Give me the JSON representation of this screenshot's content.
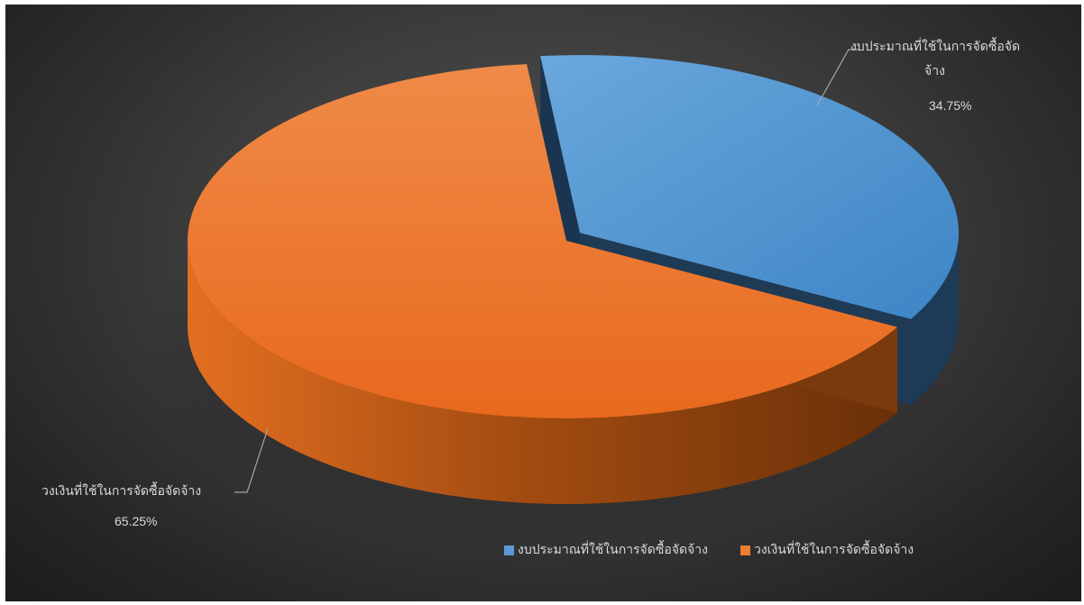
{
  "chart_data": {
    "type": "pie",
    "title": "",
    "slices": [
      {
        "label": "งบประมาณที่ใช้ในการจัดซื้อจัดจ้าง",
        "value": 34.75,
        "display": "34.75%",
        "color": "#5b9bd5"
      },
      {
        "label": "วงเงินที่ใช้ในการจัดซื้อจัดจ้าง",
        "value": 65.25,
        "display": "65.25%",
        "color": "#ed7d31"
      }
    ],
    "legend_position": "bottom-right",
    "style": "3d-exploded"
  },
  "labels": {
    "blue_line1": "งบประมาณที่ใช้ในการจัดซื้อจัด",
    "blue_line2": "จ้าง",
    "orange_line1": "วงเงินที่ใช้ในการจัดซื้อจัดจ้าง"
  }
}
